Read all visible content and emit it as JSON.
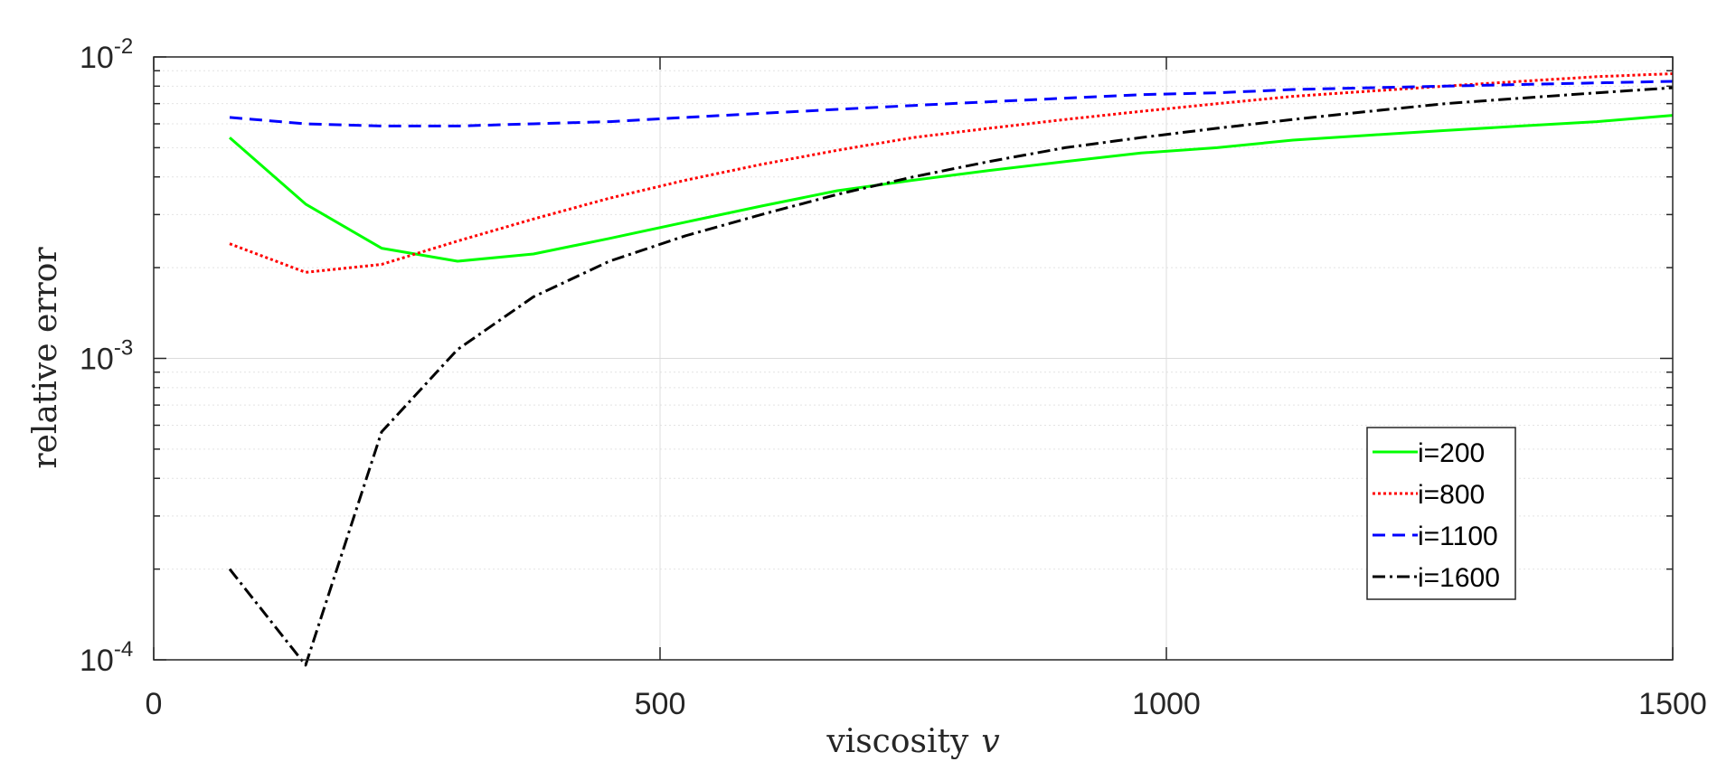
{
  "chart_data": {
    "type": "line",
    "xlabel": "viscosity",
    "xlabel_var": "v",
    "ylabel": "relative error",
    "xlim": [
      0,
      1500
    ],
    "ylim": [
      0.0001,
      0.01
    ],
    "yscale": "log",
    "grid": true,
    "minor_grid": true,
    "legend_position": "bottom-right",
    "x_ticks": [
      {
        "value": 0,
        "label": "0"
      },
      {
        "value": 500,
        "label": "500"
      },
      {
        "value": 1000,
        "label": "1000"
      },
      {
        "value": 1500,
        "label": "1500"
      }
    ],
    "y_ticks": [
      {
        "value": 0.0001,
        "base": "10",
        "exp": "-4"
      },
      {
        "value": 0.001,
        "base": "10",
        "exp": "-3"
      },
      {
        "value": 0.01,
        "base": "10",
        "exp": "-2"
      }
    ],
    "x": [
      75,
      150,
      225,
      300,
      375,
      450,
      525,
      600,
      675,
      750,
      825,
      900,
      975,
      1050,
      1125,
      1200,
      1275,
      1350,
      1425,
      1500
    ],
    "series": [
      {
        "name": "i=200",
        "color": "#00ff00",
        "dash": "solid",
        "values": [
          0.0054,
          0.00325,
          0.00232,
          0.0021,
          0.00222,
          0.0025,
          0.00283,
          0.0032,
          0.0036,
          0.0039,
          0.0042,
          0.0045,
          0.0048,
          0.005,
          0.0053,
          0.0055,
          0.0057,
          0.0059,
          0.0061,
          0.0064
        ]
      },
      {
        "name": "i=800",
        "color": "#ff0000",
        "dash": "dotted",
        "values": [
          0.0024,
          0.00193,
          0.00205,
          0.00245,
          0.0029,
          0.0034,
          0.0039,
          0.0044,
          0.0049,
          0.0054,
          0.0058,
          0.0062,
          0.0066,
          0.007,
          0.0074,
          0.0077,
          0.008,
          0.0083,
          0.0086,
          0.0088
        ]
      },
      {
        "name": "i=1100",
        "color": "#0000ff",
        "dash": "dashed",
        "values": [
          0.0063,
          0.006,
          0.0059,
          0.0059,
          0.006,
          0.0061,
          0.0063,
          0.0065,
          0.0067,
          0.0069,
          0.0071,
          0.0073,
          0.0075,
          0.0076,
          0.0078,
          0.0079,
          0.008,
          0.0081,
          0.0082,
          0.0083
        ]
      },
      {
        "name": "i=1600",
        "color": "#000000",
        "dash": "dashdot",
        "values": [
          0.0002,
          9.6e-05,
          0.00057,
          0.00107,
          0.0016,
          0.0021,
          0.00255,
          0.003,
          0.0035,
          0.004,
          0.0045,
          0.005,
          0.0054,
          0.0058,
          0.0062,
          0.0066,
          0.007,
          0.0073,
          0.0076,
          0.0079
        ]
      }
    ]
  }
}
